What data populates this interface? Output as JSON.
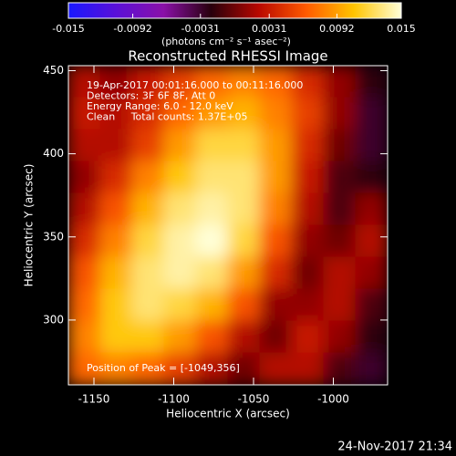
{
  "chart_data": {
    "type": "image",
    "title": "Reconstructed RHESSI Image",
    "x_label": "Heliocentric X (arcsec)",
    "y_label": "Heliocentric Y (arcsec)",
    "xlim": [
      -1166,
      -966
    ],
    "ylim": [
      261,
      453
    ],
    "xticks": [
      -1150,
      -1100,
      -1050,
      -1000
    ],
    "yticks": [
      300,
      350,
      400,
      450
    ],
    "annotations": [
      "19-Apr-2017 00:01:16.000 to 00:11:16.000",
      "Detectors: 3F 6F 8F, Att 0",
      "Energy Range: 6.0 - 12.0 keV",
      "Clean     Total counts: 1.37E+05"
    ],
    "peak_label": "Position of Peak = [-1049,356]",
    "timestamp": "24-Nov-2017 21:34",
    "colorbar": {
      "label": "(photons cm⁻² s⁻¹ asec⁻²)",
      "lim": [
        -0.015,
        0.015
      ],
      "ticks": [
        -0.015,
        -0.0092,
        -0.0031,
        0.0031,
        0.0092,
        0.015
      ],
      "colors": [
        "#1818ff",
        "#5a10d8",
        "#8a10a8",
        "#28000c",
        "#b80800",
        "#ff5a00",
        "#ffc400",
        "#ffffd8"
      ]
    },
    "z": [
      [
        0.002,
        0.001,
        0.003,
        0.005,
        0.007,
        0.008,
        0.007,
        0.004,
        0.001,
        -0.002
      ],
      [
        0.003,
        0.002,
        0.004,
        0.007,
        0.009,
        0.01,
        0.008,
        0.005,
        0.001,
        -0.003
      ],
      [
        0.002,
        0.002,
        0.005,
        0.009,
        0.012,
        0.012,
        0.009,
        0.004,
        0.0,
        -0.003
      ],
      [
        0.001,
        0.004,
        0.008,
        0.011,
        0.013,
        0.013,
        0.009,
        0.003,
        -0.001,
        -0.002
      ],
      [
        0.002,
        0.006,
        0.01,
        0.013,
        0.014,
        0.013,
        0.008,
        0.002,
        -0.001,
        0.001
      ],
      [
        0.004,
        0.008,
        0.012,
        0.014,
        0.015,
        0.012,
        0.006,
        0.001,
        0.0,
        0.002
      ],
      [
        0.006,
        0.01,
        0.013,
        0.014,
        0.013,
        0.009,
        0.004,
        0.0,
        0.002,
        0.001
      ],
      [
        0.007,
        0.011,
        0.013,
        0.012,
        0.01,
        0.006,
        0.001,
        0.001,
        0.002,
        -0.001
      ],
      [
        0.008,
        0.011,
        0.011,
        0.009,
        0.006,
        0.002,
        0.0,
        0.003,
        0.001,
        -0.002
      ],
      [
        0.007,
        0.008,
        0.007,
        0.005,
        0.002,
        0.0,
        0.002,
        0.002,
        -0.001,
        -0.003
      ]
    ]
  }
}
